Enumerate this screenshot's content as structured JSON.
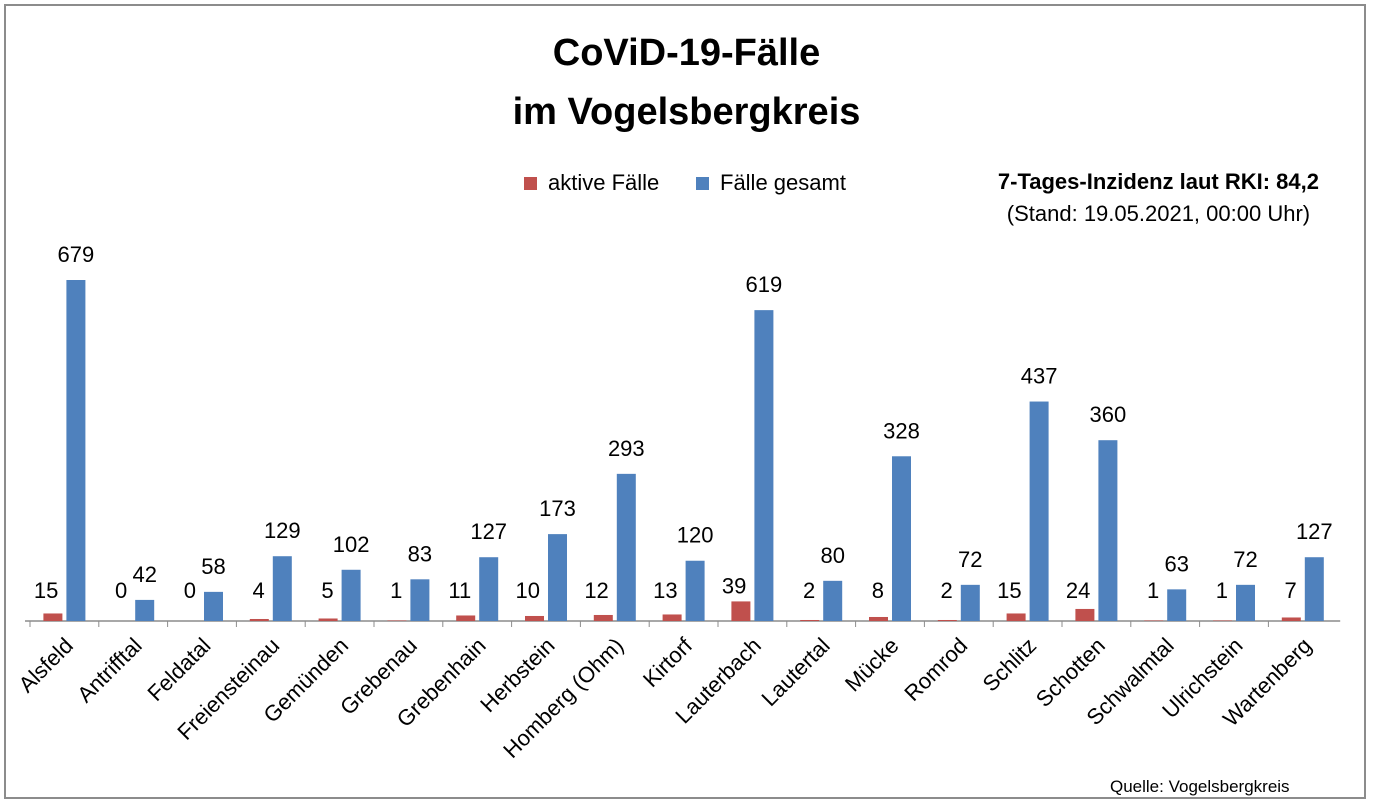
{
  "chart_data": {
    "type": "bar",
    "title": [
      "CoViD-19-Fälle",
      "im Vogelsbergkreis"
    ],
    "categories": [
      "Alsfeld",
      "Antrifftal",
      "Feldatal",
      "Freiensteinau",
      "Gemünden",
      "Grebenau",
      "Grebenhain",
      "Herbstein",
      "Homberg (Ohm)",
      "Kirtorf",
      "Lauterbach",
      "Lautertal",
      "Mücke",
      "Romrod",
      "Schlitz",
      "Schotten",
      "Schwalmtal",
      "Ulrichstein",
      "Wartenberg"
    ],
    "series": [
      {
        "name": "aktive Fälle",
        "color": "#c0504d",
        "values": [
          15,
          0,
          0,
          4,
          5,
          1,
          11,
          10,
          12,
          13,
          39,
          2,
          8,
          2,
          15,
          24,
          1,
          1,
          7
        ]
      },
      {
        "name": "Fälle gesamt",
        "color": "#4f81bd",
        "values": [
          679,
          42,
          58,
          129,
          102,
          83,
          127,
          173,
          293,
          120,
          619,
          80,
          328,
          72,
          437,
          360,
          63,
          72,
          127
        ]
      }
    ],
    "ylim": [
      0,
      700
    ],
    "grid": false,
    "legend": "top-center",
    "xlabel": "",
    "ylabel": ""
  },
  "annotation": {
    "line1": "7-Tages-Inzidenz laut RKI: 84,2",
    "line2": "(Stand: 19.05.2021, 00:00 Uhr)"
  },
  "source": "Quelle: Vogelsbergkreis"
}
